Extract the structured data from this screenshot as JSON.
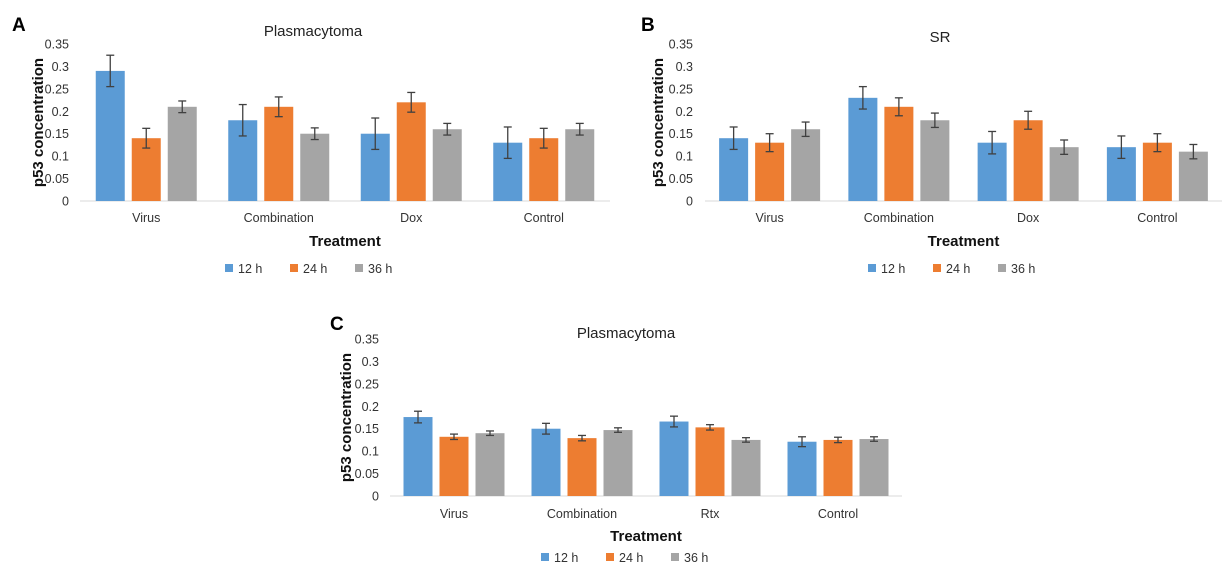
{
  "colors": {
    "12 h": "#5b9bd5",
    "24 h": "#ed7d31",
    "36 h": "#a5a5a5"
  },
  "chart_data": [
    {
      "panel": "A",
      "type": "bar",
      "title": "Plasmacytoma",
      "xlabel": "Treatment",
      "ylabel": "p53 concentration",
      "ylim": [
        0,
        0.35
      ],
      "yticks": [
        0,
        0.05,
        0.1,
        0.15,
        0.2,
        0.25,
        0.3,
        0.35
      ],
      "ytick_labels": [
        "0",
        "0.05",
        "0.1",
        "0.15",
        "0.2",
        "0.25",
        "0.3",
        "0.35"
      ],
      "grid": false,
      "legend_position": "bottom",
      "categories": [
        "Virus",
        "Combination",
        "Dox",
        "Control"
      ],
      "series": [
        {
          "name": "12 h",
          "values": [
            0.29,
            0.18,
            0.15,
            0.13
          ],
          "errors": [
            0.035,
            0.035,
            0.035,
            0.035
          ]
        },
        {
          "name": "24 h",
          "values": [
            0.14,
            0.21,
            0.22,
            0.14
          ],
          "errors": [
            0.022,
            0.022,
            0.022,
            0.022
          ]
        },
        {
          "name": "36 h",
          "values": [
            0.21,
            0.15,
            0.16,
            0.16
          ],
          "errors": [
            0.013,
            0.013,
            0.013,
            0.013
          ]
        }
      ]
    },
    {
      "panel": "B",
      "type": "bar",
      "title": "SR",
      "xlabel": "Treatment",
      "ylabel": "p53 concentration",
      "ylim": [
        0,
        0.35
      ],
      "yticks": [
        0,
        0.05,
        0.1,
        0.15,
        0.2,
        0.25,
        0.3,
        0.35
      ],
      "ytick_labels": [
        "0",
        "0.05",
        "0.1",
        "0.15",
        "0.2",
        "0.25",
        "0.3",
        "0.35"
      ],
      "grid": false,
      "legend_position": "bottom",
      "categories": [
        "Virus",
        "Combination",
        "Dox",
        "Control"
      ],
      "series": [
        {
          "name": "12 h",
          "values": [
            0.14,
            0.23,
            0.13,
            0.12
          ],
          "errors": [
            0.025,
            0.025,
            0.025,
            0.025
          ]
        },
        {
          "name": "24 h",
          "values": [
            0.13,
            0.21,
            0.18,
            0.13
          ],
          "errors": [
            0.02,
            0.02,
            0.02,
            0.02
          ]
        },
        {
          "name": "36 h",
          "values": [
            0.16,
            0.18,
            0.12,
            0.11
          ],
          "errors": [
            0.016,
            0.016,
            0.016,
            0.016
          ]
        }
      ]
    },
    {
      "panel": "C",
      "type": "bar",
      "title": "Plasmacytoma",
      "xlabel": "Treatment",
      "ylabel": "p53 concentration",
      "ylim": [
        0,
        0.35
      ],
      "yticks": [
        0,
        0.05,
        0.1,
        0.15,
        0.2,
        0.25,
        0.3,
        0.35
      ],
      "ytick_labels": [
        "0",
        "0.05",
        "0.1",
        "0.15",
        "0.2",
        "0.25",
        "0.3",
        "0.35"
      ],
      "grid": false,
      "legend_position": "bottom",
      "categories": [
        "Virus",
        "Combination",
        "Rtx",
        "Control"
      ],
      "series": [
        {
          "name": "12 h",
          "values": [
            0.176,
            0.15,
            0.166,
            0.121
          ],
          "errors": [
            0.013,
            0.012,
            0.012,
            0.011
          ]
        },
        {
          "name": "24 h",
          "values": [
            0.132,
            0.129,
            0.153,
            0.125
          ],
          "errors": [
            0.006,
            0.006,
            0.006,
            0.006
          ]
        },
        {
          "name": "36 h",
          "values": [
            0.14,
            0.147,
            0.125,
            0.127
          ],
          "errors": [
            0.005,
            0.005,
            0.005,
            0.005
          ]
        }
      ]
    }
  ]
}
